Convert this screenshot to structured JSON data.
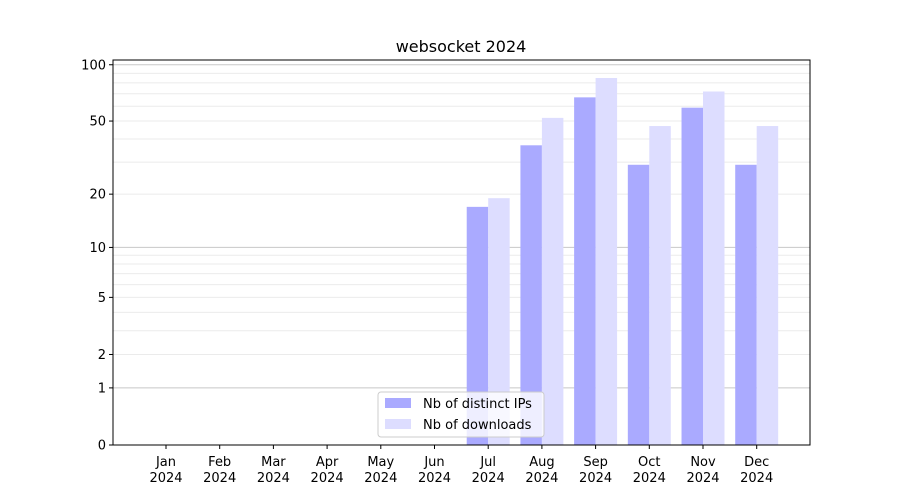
{
  "chart_data": {
    "type": "bar",
    "title": "websocket 2024",
    "xlabel": "",
    "ylabel": "",
    "yscale": "log(1+y)",
    "ylim": [
      0,
      106
    ],
    "yticks": [
      0,
      1,
      2,
      5,
      10,
      20,
      50,
      100
    ],
    "ytick_labels": [
      "0",
      "1",
      "2",
      "5",
      "10",
      "20",
      "50",
      "100"
    ],
    "grid": true,
    "legend_position": "bottom-center",
    "categories": [
      "Jan\n2024",
      "Feb\n2024",
      "Mar\n2024",
      "Apr\n2024",
      "May\n2024",
      "Jun\n2024",
      "Jul\n2024",
      "Aug\n2024",
      "Sep\n2024",
      "Oct\n2024",
      "Nov\n2024",
      "Dec\n2024"
    ],
    "series": [
      {
        "name": "Nb of distinct IPs",
        "color": "#aaaaff",
        "values": [
          0,
          0,
          0,
          0,
          0,
          0,
          17,
          37,
          67,
          29,
          59,
          29
        ]
      },
      {
        "name": "Nb of downloads",
        "color": "#ddddff",
        "values": [
          0,
          0,
          0,
          0,
          0,
          0,
          19,
          52,
          85,
          47,
          72,
          47
        ]
      }
    ]
  }
}
